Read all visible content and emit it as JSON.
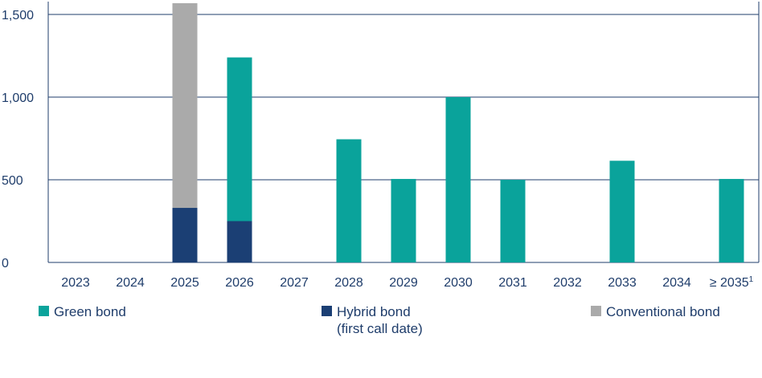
{
  "chart_data": {
    "type": "bar",
    "stacked": true,
    "categories": [
      "2023",
      "2024",
      "2025",
      "2026",
      "2027",
      "2028",
      "2029",
      "2030",
      "2031",
      "2032",
      "2033",
      "2034",
      "≥ 2035"
    ],
    "category_footnotes": [
      "",
      "",
      "",
      "",
      "",
      "",
      "",
      "",
      "",
      "",
      "",
      "",
      "1"
    ],
    "series": [
      {
        "name": "Hybrid bond (first call date)",
        "color": "#1b3f74",
        "values": [
          0,
          0,
          330,
          250,
          0,
          0,
          0,
          0,
          0,
          0,
          0,
          0,
          0
        ]
      },
      {
        "name": "Green bond",
        "color": "#0aa39b",
        "values": [
          0,
          0,
          0,
          990,
          0,
          745,
          505,
          1000,
          500,
          0,
          615,
          0,
          505
        ]
      },
      {
        "name": "Conventional bond",
        "color": "#aaaaaa",
        "values": [
          0,
          0,
          1250,
          0,
          0,
          0,
          0,
          0,
          0,
          0,
          0,
          0,
          0
        ]
      }
    ],
    "yticks": [
      "0",
      "500",
      "1,000",
      "1,500"
    ],
    "ytick_values": [
      0,
      500,
      1000,
      1500
    ],
    "ylim": [
      0,
      1500
    ],
    "grid": true,
    "title": "",
    "xlabel": "",
    "ylabel": ""
  },
  "legend": {
    "green": {
      "label": "Green bond",
      "color": "#0aa39b"
    },
    "hybrid": {
      "label_line1": "Hybrid bond",
      "label_line2": "(first call date)",
      "color": "#1b3f74"
    },
    "conventional": {
      "label": "Conventional bond",
      "color": "#aaaaaa"
    }
  }
}
